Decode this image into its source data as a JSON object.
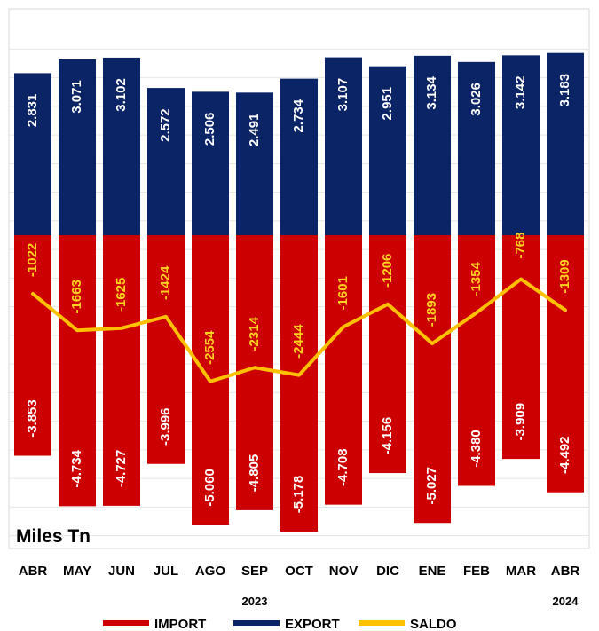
{
  "chart_data": {
    "type": "bar",
    "unit_label": "Miles Tn",
    "categories": [
      "ABR",
      "MAY",
      "JUN",
      "JUL",
      "AGO",
      "SEP",
      "OCT",
      "NOV",
      "DIC",
      "ENE",
      "FEB",
      "MAR",
      "ABR"
    ],
    "year_labels": [
      {
        "text": "2023",
        "category_index": 5
      },
      {
        "text": "2024",
        "category_index": 12
      }
    ],
    "series": [
      {
        "name": "IMPORT",
        "color": "#cc0000",
        "values": [
          -3853,
          -4734,
          -4727,
          -3996,
          -5060,
          -4805,
          -5178,
          -4708,
          -4156,
          -5027,
          -4380,
          -3909,
          -4492
        ],
        "labels": [
          "-3.853",
          "-4.734",
          "-4.727",
          "-3.996",
          "-5.060",
          "-4.805",
          "-5.178",
          "-4.708",
          "-4.156",
          "-5.027",
          "-4.380",
          "-3.909",
          "-4.492"
        ]
      },
      {
        "name": "EXPORT",
        "color": "#0b2466",
        "values": [
          2831,
          3071,
          3102,
          2572,
          2506,
          2491,
          2734,
          3107,
          2951,
          3134,
          3026,
          3142,
          3183
        ],
        "labels": [
          "2.831",
          "3.071",
          "3.102",
          "2.572",
          "2.506",
          "2.491",
          "2.734",
          "3.107",
          "2.951",
          "3.134",
          "3.026",
          "3.142",
          "3.183"
        ]
      },
      {
        "name": "SALDO",
        "color": "#ffc000",
        "type": "line",
        "values": [
          -1022,
          -1663,
          -1625,
          -1424,
          -2554,
          -2314,
          -2444,
          -1601,
          -1206,
          -1893,
          -1354,
          -768,
          -1309
        ],
        "labels": [
          "-1022",
          "-1663",
          "-1625",
          "-1424",
          "-2554",
          "-2314",
          "-2444",
          "-1601",
          "-1206",
          "-1893",
          "-1354",
          "-768",
          "-1309"
        ]
      }
    ],
    "ylim": [
      -5400,
      3600
    ],
    "grid": true,
    "legend_placement": "bottom"
  }
}
